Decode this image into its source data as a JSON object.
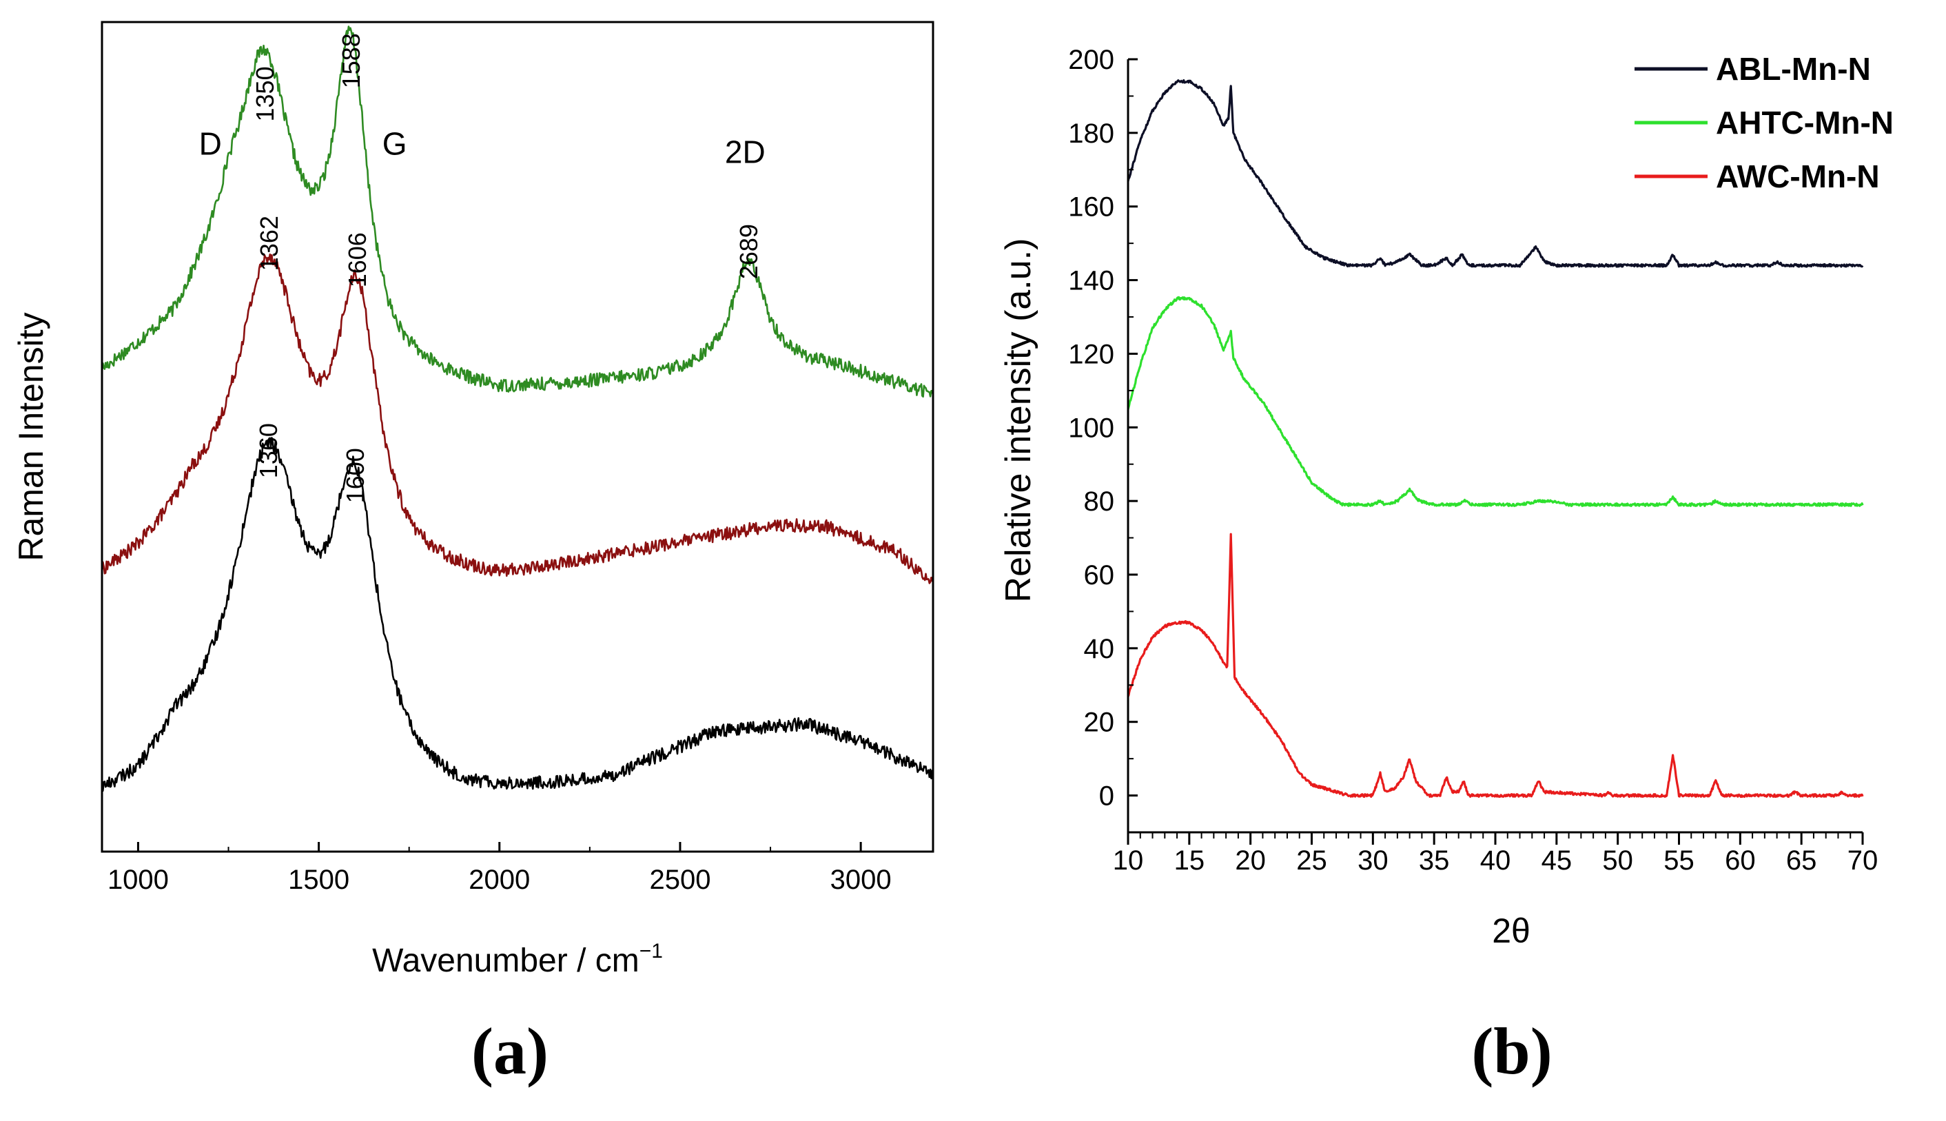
{
  "chart_data": [
    {
      "type": "line",
      "panel_label": "(a)",
      "title": "",
      "xlabel": "Wavenumber / cm",
      "xlabel_sup": "−1",
      "ylabel": "Raman Intensity",
      "xlim": [
        900,
        3200
      ],
      "ylim": [
        0,
        1
      ],
      "x_ticks": [
        1000,
        1500,
        2000,
        2500,
        3000
      ],
      "x_tick_labels": [
        "1000",
        "1500",
        "2000",
        "2500",
        "3000"
      ],
      "y_ticks_shown": false,
      "grid": false,
      "series": [
        {
          "name": "top (green)",
          "color": "#2e8b22",
          "offset": 0.55,
          "peaks": [
            {
              "center": 1350,
              "height": 0.27,
              "width": 90
            },
            {
              "center": 1588,
              "height": 0.35,
              "width": 55
            },
            {
              "center": 2689,
              "height": 0.12,
              "width": 55
            }
          ],
          "baseline": [
            [
              900,
              0.02
            ],
            [
              1100,
              0.07
            ],
            [
              1250,
              0.16
            ],
            [
              1700,
              0.02
            ],
            [
              2000,
              0.0
            ],
            [
              2450,
              0.02
            ],
            [
              2700,
              0.04
            ],
            [
              2950,
              0.03
            ],
            [
              3200,
              0.0
            ]
          ]
        },
        {
          "name": "middle (dark red)",
          "color": "#8b1010",
          "offset": 0.32,
          "peaks": [
            {
              "center": 1362,
              "height": 0.33,
              "width": 110
            },
            {
              "center": 1606,
              "height": 0.3,
              "width": 70
            }
          ],
          "baseline": [
            [
              900,
              0.0
            ],
            [
              1000,
              0.02
            ],
            [
              1150,
              0.07
            ],
            [
              1750,
              0.0
            ],
            [
              2000,
              0.0
            ],
            [
              2400,
              0.04
            ],
            [
              2750,
              0.07
            ],
            [
              2900,
              0.07
            ],
            [
              3100,
              0.04
            ],
            [
              3200,
              0.0
            ]
          ]
        },
        {
          "name": "bottom (black)",
          "color": "#000000",
          "offset": 0.05,
          "peaks": [
            {
              "center": 1360,
              "height": 0.38,
              "width": 120
            },
            {
              "center": 1600,
              "height": 0.33,
              "width": 80
            }
          ],
          "baseline": [
            [
              900,
              0.0
            ],
            [
              1000,
              0.01
            ],
            [
              1100,
              0.05
            ],
            [
              1750,
              0.0
            ],
            [
              1900,
              0.0
            ],
            [
              2300,
              0.03
            ],
            [
              2600,
              0.09
            ],
            [
              2850,
              0.1
            ],
            [
              3000,
              0.08
            ],
            [
              3200,
              0.04
            ]
          ]
        }
      ],
      "annotations": [
        {
          "text": "D",
          "x": 1200,
          "y": 0.84,
          "rotate": false
        },
        {
          "text": "G",
          "x": 1710,
          "y": 0.84,
          "rotate": false
        },
        {
          "text": "2D",
          "x": 2680,
          "y": 0.83,
          "rotate": false
        },
        {
          "text": "1350",
          "x": 1350,
          "y": 0.88,
          "rotate": true
        },
        {
          "text": "1588",
          "x": 1588,
          "y": 0.92,
          "rotate": true
        },
        {
          "text": "1362",
          "x": 1362,
          "y": 0.7,
          "rotate": true
        },
        {
          "text": "1606",
          "x": 1606,
          "y": 0.68,
          "rotate": true
        },
        {
          "text": "2689",
          "x": 2689,
          "y": 0.69,
          "rotate": true
        },
        {
          "text": "1360",
          "x": 1360,
          "y": 0.45,
          "rotate": true
        },
        {
          "text": "1600",
          "x": 1600,
          "y": 0.42,
          "rotate": true
        }
      ]
    },
    {
      "type": "line",
      "panel_label": "(b)",
      "title": "",
      "xlabel": "2θ",
      "ylabel": "Relative intensity (a.u.)",
      "xlim": [
        10,
        70
      ],
      "ylim": [
        -10,
        200
      ],
      "x_ticks": [
        10,
        15,
        20,
        25,
        30,
        35,
        40,
        45,
        50,
        55,
        60,
        65,
        70
      ],
      "x_tick_labels": [
        "10",
        "15",
        "20",
        "25",
        "30",
        "35",
        "40",
        "45",
        "50",
        "55",
        "60",
        "65",
        "70"
      ],
      "y_ticks": [
        0,
        20,
        40,
        60,
        80,
        100,
        120,
        140,
        160,
        180,
        200
      ],
      "y_tick_labels": [
        "0",
        "20",
        "40",
        "60",
        "80",
        "100",
        "120",
        "140",
        "160",
        "180",
        "200"
      ],
      "grid": false,
      "legend_position": "top-right",
      "series": [
        {
          "name": "ABL-Mn-N",
          "color": "#0d0f26",
          "points": [
            [
              10,
              167
            ],
            [
              11,
              178
            ],
            [
              12,
              186
            ],
            [
              13,
              191
            ],
            [
              14,
              194
            ],
            [
              15,
              194
            ],
            [
              16,
              192
            ],
            [
              17,
              188
            ],
            [
              17.8,
              182
            ],
            [
              18.2,
              184
            ],
            [
              18.4,
              193
            ],
            [
              18.6,
              180
            ],
            [
              19.5,
              173
            ],
            [
              21,
              166
            ],
            [
              23,
              156
            ],
            [
              24.5,
              149
            ],
            [
              26,
              146
            ],
            [
              27,
              145
            ],
            [
              28,
              144
            ],
            [
              30,
              144
            ],
            [
              30.6,
              146
            ],
            [
              31,
              144
            ],
            [
              32,
              145
            ],
            [
              33,
              147
            ],
            [
              34,
              144
            ],
            [
              35,
              144
            ],
            [
              36,
              146
            ],
            [
              36.5,
              144
            ],
            [
              37.3,
              147
            ],
            [
              37.8,
              144
            ],
            [
              40,
              144
            ],
            [
              42,
              144
            ],
            [
              43.3,
              149
            ],
            [
              44,
              145
            ],
            [
              45,
              144
            ],
            [
              49,
              144
            ],
            [
              50,
              144
            ],
            [
              54,
              144
            ],
            [
              54.5,
              147
            ],
            [
              55,
              144
            ],
            [
              57.5,
              144
            ],
            [
              58,
              145
            ],
            [
              58.5,
              144
            ],
            [
              62.5,
              144
            ],
            [
              63,
              145
            ],
            [
              63.5,
              144
            ],
            [
              70,
              144
            ]
          ]
        },
        {
          "name": "AHTC-Mn-N",
          "color": "#2ee02e",
          "points": [
            [
              10,
              105
            ],
            [
              11,
              117
            ],
            [
              12,
              127
            ],
            [
              13,
              132
            ],
            [
              14,
              135
            ],
            [
              15,
              135
            ],
            [
              16,
              133
            ],
            [
              17,
              128
            ],
            [
              17.8,
              121
            ],
            [
              18.2,
              124
            ],
            [
              18.4,
              126
            ],
            [
              18.6,
              119
            ],
            [
              19.5,
              113
            ],
            [
              21,
              107
            ],
            [
              23,
              96
            ],
            [
              25,
              85
            ],
            [
              26.5,
              81
            ],
            [
              27.5,
              79
            ],
            [
              30,
              79
            ],
            [
              30.6,
              80
            ],
            [
              31,
              79
            ],
            [
              32,
              80
            ],
            [
              33,
              83
            ],
            [
              33.8,
              80
            ],
            [
              35,
              79
            ],
            [
              37,
              79
            ],
            [
              37.5,
              80
            ],
            [
              38,
              79
            ],
            [
              42,
              79
            ],
            [
              43.5,
              80
            ],
            [
              44.5,
              80
            ],
            [
              46,
              79
            ],
            [
              54,
              79
            ],
            [
              54.5,
              81
            ],
            [
              55,
              79
            ],
            [
              57.5,
              79
            ],
            [
              58,
              80
            ],
            [
              58.5,
              79
            ],
            [
              70,
              79
            ]
          ]
        },
        {
          "name": "AWC-Mn-N",
          "color": "#e81c1c",
          "points": [
            [
              10,
              27
            ],
            [
              11,
              37
            ],
            [
              12,
              43
            ],
            [
              13,
              46
            ],
            [
              14,
              47
            ],
            [
              15,
              47
            ],
            [
              16,
              45
            ],
            [
              17,
              41
            ],
            [
              17.8,
              36
            ],
            [
              18.1,
              35
            ],
            [
              18.4,
              71
            ],
            [
              18.7,
              32
            ],
            [
              19.5,
              28
            ],
            [
              21,
              22
            ],
            [
              22.5,
              15
            ],
            [
              24,
              6
            ],
            [
              25,
              3
            ],
            [
              26,
              2
            ],
            [
              27,
              1
            ],
            [
              28,
              0
            ],
            [
              30,
              0
            ],
            [
              30.6,
              6
            ],
            [
              31,
              1
            ],
            [
              31.8,
              2
            ],
            [
              32.5,
              5
            ],
            [
              33,
              10
            ],
            [
              33.5,
              4
            ],
            [
              34.5,
              0
            ],
            [
              35.5,
              0
            ],
            [
              36,
              5
            ],
            [
              36.5,
              1
            ],
            [
              37,
              1
            ],
            [
              37.4,
              4
            ],
            [
              37.8,
              0
            ],
            [
              43,
              0
            ],
            [
              43.5,
              4
            ],
            [
              44,
              1
            ],
            [
              49,
              0
            ],
            [
              49.3,
              1
            ],
            [
              49.6,
              0
            ],
            [
              54,
              0
            ],
            [
              54.5,
              11
            ],
            [
              55,
              0
            ],
            [
              57.5,
              0
            ],
            [
              58,
              4
            ],
            [
              58.5,
              0
            ],
            [
              64,
              0
            ],
            [
              64.5,
              1
            ],
            [
              65,
              0
            ],
            [
              68,
              0
            ],
            [
              68.3,
              1
            ],
            [
              68.6,
              0
            ],
            [
              70,
              0
            ]
          ]
        }
      ]
    }
  ]
}
